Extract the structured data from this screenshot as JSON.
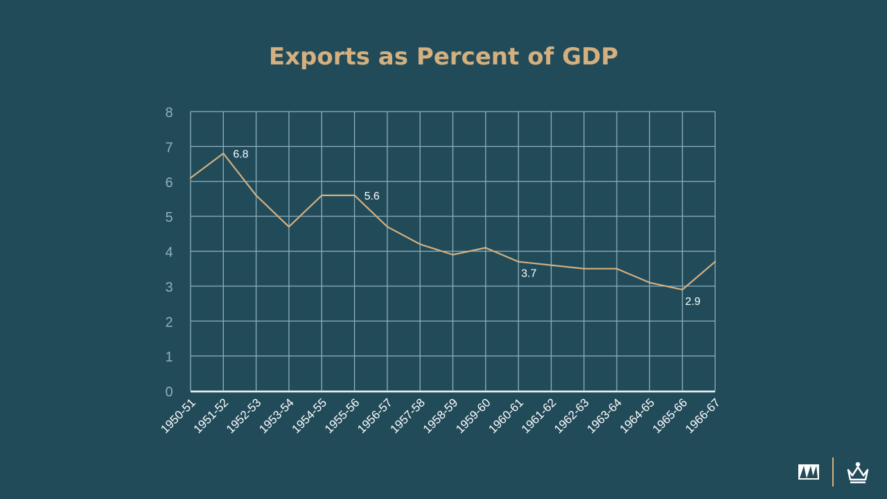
{
  "slide": {
    "title": "Exports as Percent of GDP"
  },
  "colors": {
    "background": "#224b5a",
    "title": "#d4b07f",
    "line": "#d4b07f",
    "grid": "#8fb0bd",
    "tick_label_y": "#8fb0bd",
    "tick_label_x": "#ffffff",
    "data_label": "#ffffff"
  },
  "logos": {
    "left_logo_icon": "columbia-business-school-mark-icon",
    "right_logo_icon": "columbia-crown-icon"
  },
  "chart_data": {
    "type": "line",
    "title": "Exports as Percent of GDP",
    "xlabel": "",
    "ylabel": "",
    "ylim": [
      0,
      8
    ],
    "yticks": [
      0,
      1,
      2,
      3,
      4,
      5,
      6,
      7,
      8
    ],
    "grid": true,
    "legend": "none",
    "categories": [
      "1950-51",
      "1951-52",
      "1952-53",
      "1953-54",
      "1954-55",
      "1955-56",
      "1956-57",
      "1957-58",
      "1958-59",
      "1959-60",
      "1960-61",
      "1961-62",
      "1962-63",
      "1963-64",
      "1964-65",
      "1965-66",
      "1966-67"
    ],
    "series": [
      {
        "values": [
          6.1,
          6.8,
          5.6,
          4.7,
          5.6,
          5.6,
          4.7,
          4.2,
          3.9,
          4.1,
          3.7,
          3.6,
          3.5,
          3.5,
          3.1,
          2.9,
          3.7
        ]
      }
    ],
    "data_labels": [
      {
        "index": 1,
        "text": "6.8",
        "placement": "right"
      },
      {
        "index": 5,
        "text": "5.6",
        "placement": "right"
      },
      {
        "index": 10,
        "text": "3.7",
        "placement": "below"
      },
      {
        "index": 15,
        "text": "2.9",
        "placement": "below"
      }
    ]
  }
}
